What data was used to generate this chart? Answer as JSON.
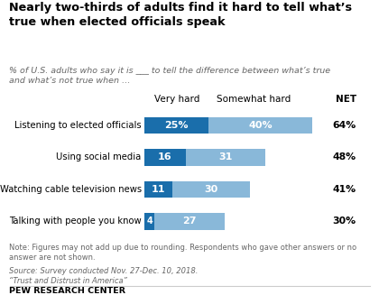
{
  "title": "Nearly two-thirds of adults find it hard to tell what’s\ntrue when elected officials speak",
  "subtitle": "% of U.S. adults who say it is ___ to tell the difference between what’s true\nand what’s not true when …",
  "categories": [
    "Listening to elected officials",
    "Using social media",
    "Watching cable television news",
    "Talking with people you know"
  ],
  "very_hard": [
    25,
    16,
    11,
    4
  ],
  "somewhat_hard": [
    40,
    31,
    30,
    27
  ],
  "net": [
    "64%",
    "48%",
    "41%",
    "30%"
  ],
  "color_very_hard": "#1a6eab",
  "color_somewhat_hard": "#89b8d9",
  "col_header_very": "Very hard",
  "col_header_somewhat": "Somewhat hard",
  "col_header_net": "NET",
  "note": "Note: Figures may not add up due to rounding. Respondents who gave other answers or no\nanswer are not shown.",
  "source_line1": "Source: Survey conducted Nov. 27-Dec. 10, 2018.",
  "source_line2": "“Trust and Distrust in America”",
  "footer": "PEW RESEARCH CENTER",
  "background_color": "#ffffff",
  "figsize": [
    4.2,
    3.27
  ],
  "dpi": 100
}
